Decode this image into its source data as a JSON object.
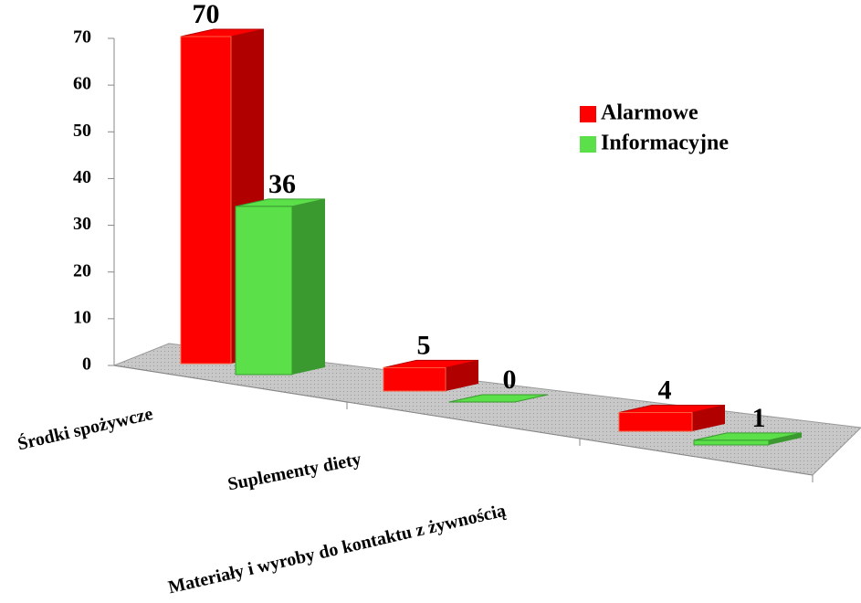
{
  "chart_data": {
    "type": "bar3d",
    "categories": [
      "Środki spożywcze",
      "Suplementy diety",
      "Materiały i wyroby do kontaktu z żywnością"
    ],
    "series": [
      {
        "name": "Alarmowe",
        "color": "#ff0000",
        "values": [
          70,
          5,
          4
        ]
      },
      {
        "name": "Informacyjne",
        "color": "#5ce04a",
        "values": [
          36,
          0,
          1
        ]
      }
    ],
    "ylim": [
      0,
      70
    ],
    "yticks": [
      0,
      10,
      20,
      30,
      40,
      50,
      60,
      70
    ]
  }
}
